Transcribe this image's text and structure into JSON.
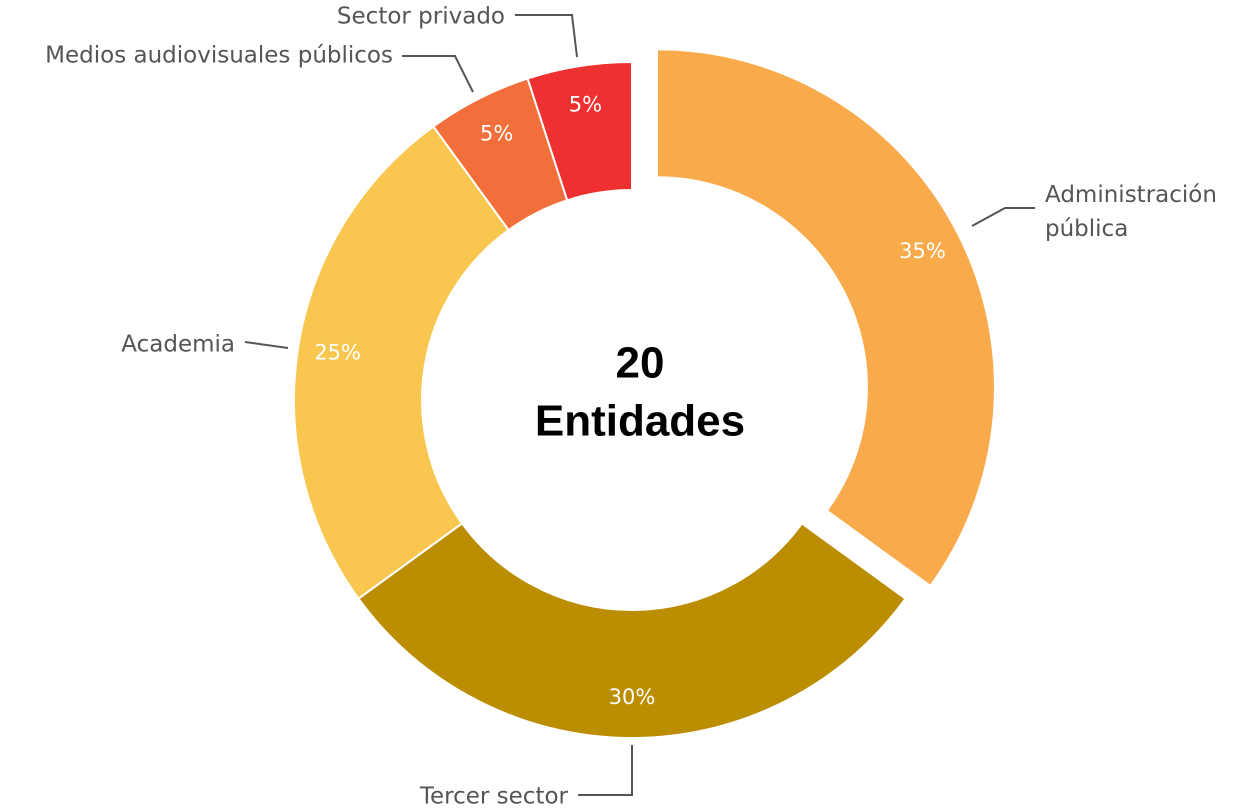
{
  "chart_data": {
    "type": "donut",
    "categories": [
      "Administración pública",
      "Tercer sector",
      "Academia",
      "Medios audiovisuales públicos",
      "Sector privado"
    ],
    "values": [
      35,
      30,
      25,
      5,
      5
    ],
    "value_labels": [
      "35%",
      "30%",
      "25%",
      "5%",
      "5%"
    ],
    "colors": [
      "#f9ab4b",
      "#bb8d00",
      "#f9c74f",
      "#f26e3b",
      "#ee3030"
    ],
    "explode": [
      true,
      false,
      false,
      false,
      false
    ],
    "total": 20,
    "total_label": "Entidades"
  }
}
